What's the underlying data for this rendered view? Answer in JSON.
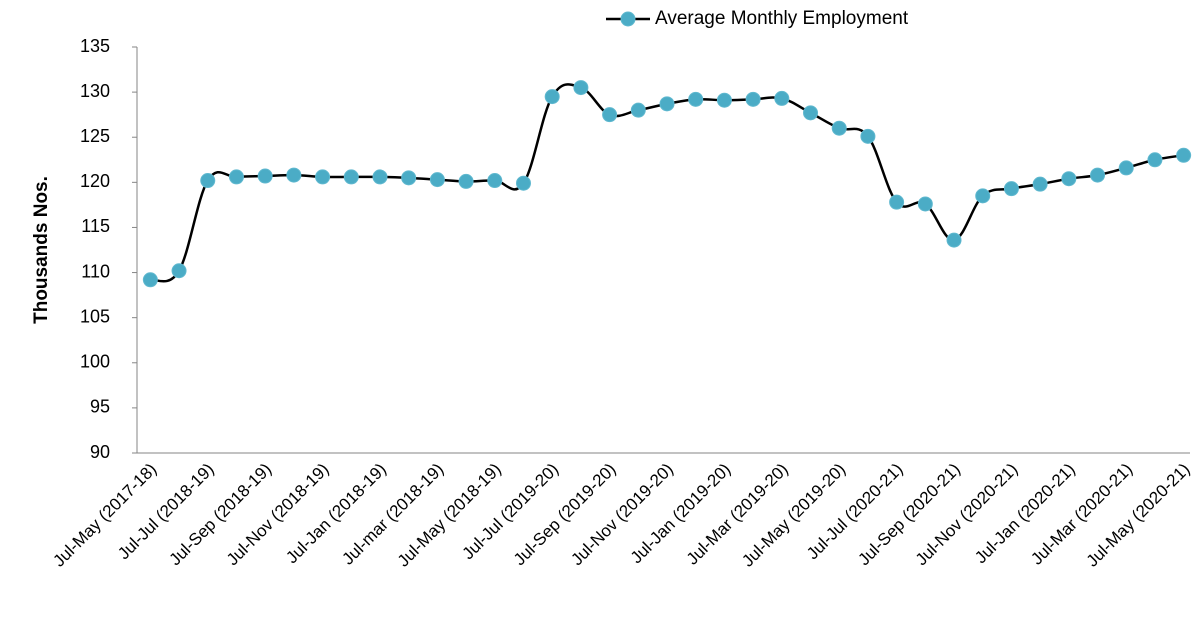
{
  "chart_data": {
    "type": "line",
    "y_label": "Thousands Nos.",
    "legend": "top",
    "categories": [
      "Jul-May (2017-18)",
      null,
      "Jul-Jul (2018-19)",
      null,
      "Jul-Sep (2018-19)",
      null,
      "Jul-Nov (2018-19)",
      null,
      "Jul-Jan (2018-19)",
      null,
      "Jul-mar (2018-19)",
      null,
      "Jul-May (2018-19)",
      null,
      "Jul-Jul (2019-20)",
      null,
      "Jul-Sep (2019-20)",
      null,
      "Jul-Nov (2019-20)",
      null,
      "Jul-Jan (2019-20)",
      null,
      "Jul-Mar (2019-20)",
      null,
      "Jul-May (2019-20)",
      null,
      "Jul-Jul (2020-21)",
      null,
      "Jul-Sep (2020-21)",
      null,
      "Jul-Nov (2020-21)",
      null,
      "Jul-Jan (2020-21)",
      null,
      "Jul-Mar (2020-21)",
      null,
      "Jul-May (2020-21)"
    ],
    "series": [
      {
        "name": "Average Monthly Employment",
        "color": "#4bacc6",
        "line_color": "#000000",
        "values": [
          109.2,
          110.2,
          120.2,
          120.6,
          120.7,
          120.8,
          120.6,
          120.6,
          120.6,
          120.5,
          120.3,
          120.1,
          120.2,
          119.9,
          129.5,
          130.5,
          127.5,
          128.0,
          128.7,
          129.2,
          129.1,
          129.2,
          129.3,
          127.7,
          126.0,
          125.1,
          117.8,
          117.6,
          113.6,
          118.5,
          119.3,
          119.8,
          120.4,
          120.8,
          121.6,
          122.5,
          123.0
        ]
      }
    ],
    "ylim": [
      90,
      135
    ],
    "yticks": [
      90,
      95,
      100,
      105,
      110,
      115,
      120,
      125,
      130,
      135
    ]
  }
}
